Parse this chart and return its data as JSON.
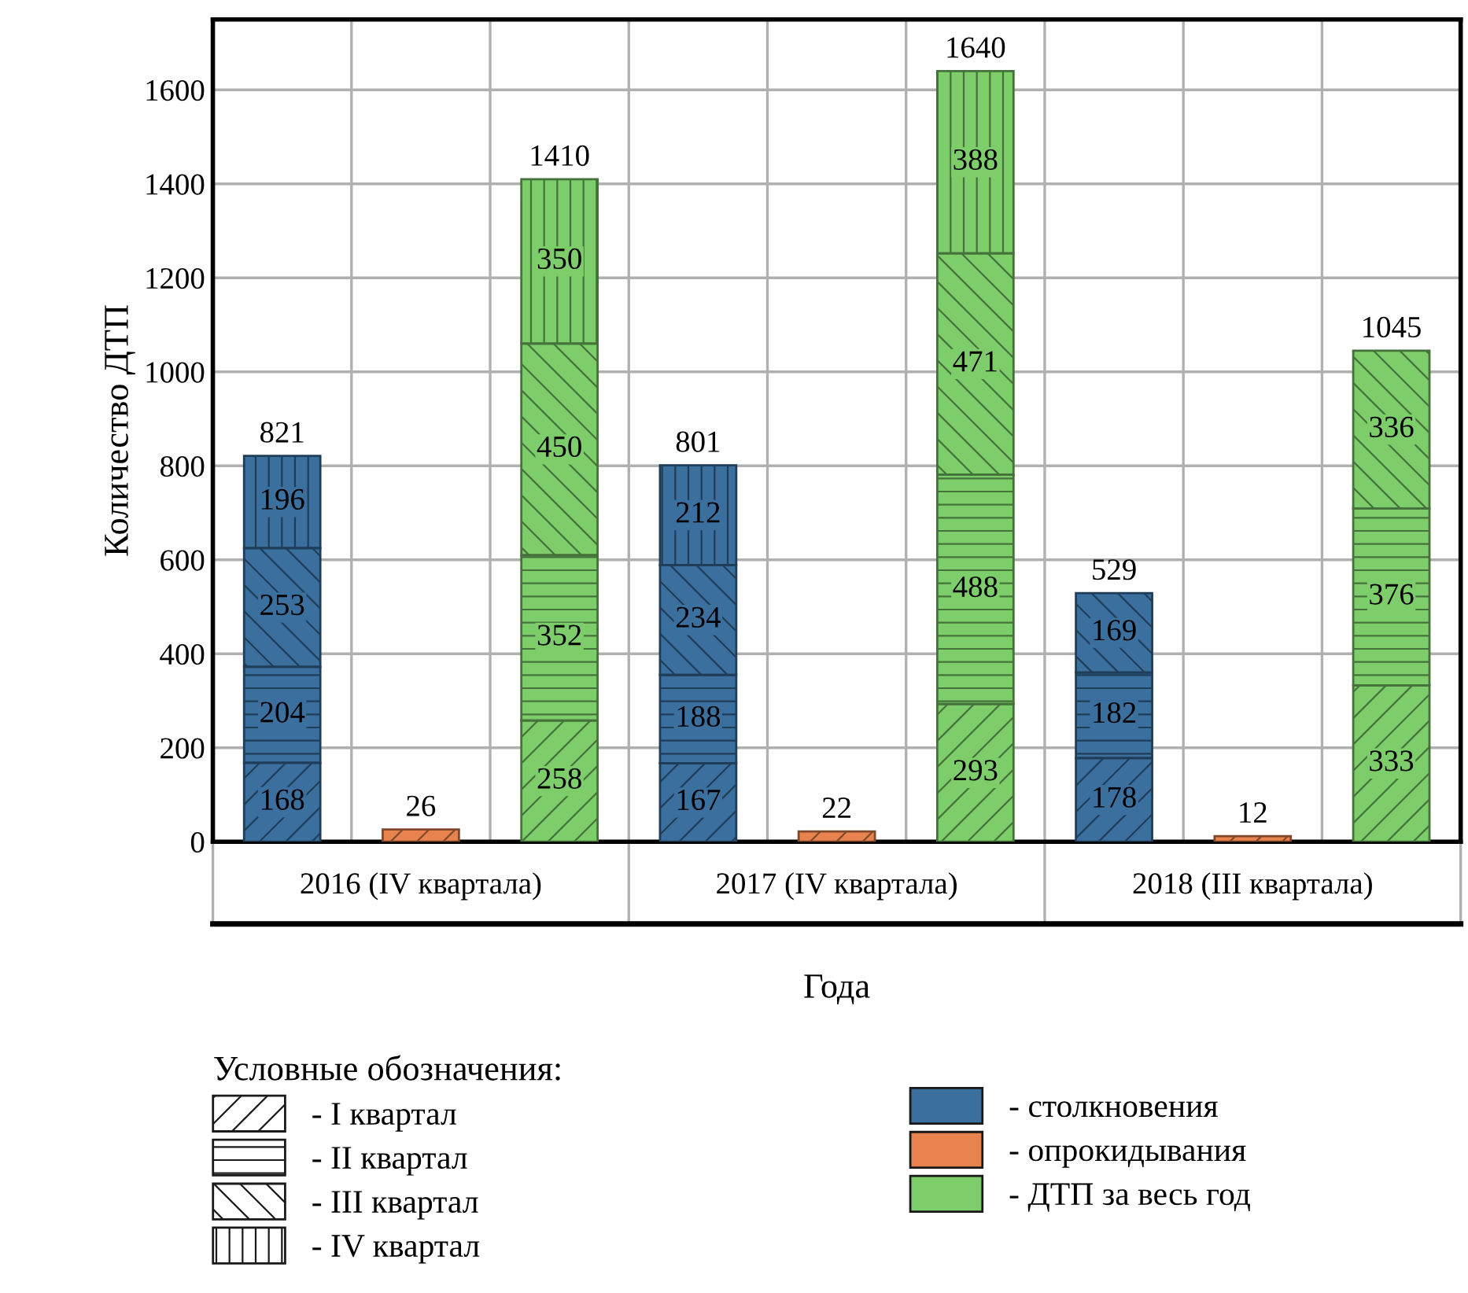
{
  "chart_data": {
    "type": "bar",
    "stacked": true,
    "xlabel": "Года",
    "ylabel": "Количество ДТП",
    "legend_title": "Условные обозначения:",
    "categories": [
      null,
      "2016 (IV квартала)",
      null,
      null,
      "2017 (IV квартала)",
      null,
      null,
      "2018 (III квартала)",
      null
    ],
    "series": [
      {
        "colors": [
          "#3a6f9e",
          "#e8834f",
          "#7dcd6b",
          "#3a6f9e",
          "#e8834f",
          "#7dcd6b",
          "#3a6f9e",
          "#e8834f",
          "#7dcd6b"
        ],
        "values": [
          168,
          26,
          258,
          167,
          22,
          293,
          178,
          12,
          333
        ],
        "value_labels": [
          "168",
          null,
          "258",
          "167",
          null,
          "293",
          "178",
          null,
          "333"
        ]
      },
      {
        "colors": [
          "#3a6f9e",
          "#e8834f",
          "#7dcd6b",
          "#3a6f9e",
          "#e8834f",
          "#7dcd6b",
          "#3a6f9e",
          "#e8834f",
          "#7dcd6b"
        ],
        "values": [
          204,
          null,
          352,
          188,
          null,
          488,
          182,
          null,
          376
        ],
        "value_labels": [
          "204",
          null,
          "352",
          "188",
          null,
          "488",
          "182",
          null,
          "376"
        ]
      },
      {
        "colors": [
          "#3a6f9e",
          "#e8834f",
          "#7dcd6b",
          "#3a6f9e",
          "#e8834f",
          "#7dcd6b",
          "#3a6f9e",
          "#e8834f",
          "#7dcd6b"
        ],
        "values": [
          253,
          null,
          450,
          234,
          null,
          471,
          169,
          null,
          336
        ],
        "value_labels": [
          "253",
          null,
          "450",
          "234",
          null,
          "471",
          "169",
          null,
          "336"
        ]
      },
      {
        "colors": [
          "#3a6f9e",
          "#e8834f",
          "#7dcd6b",
          "#3a6f9e",
          "#e8834f",
          "#7dcd6b",
          "#3a6f9e",
          "#e8834f",
          "#7dcd6b"
        ],
        "values": [
          196,
          null,
          350,
          212,
          null,
          388,
          null,
          null,
          null
        ],
        "value_labels": [
          "196",
          null,
          "350",
          "212",
          null,
          "388",
          null,
          null,
          null
        ]
      }
    ],
    "totals": [
      "821",
      "26",
      "1410",
      "801",
      "22",
      "1640",
      "529",
      "12",
      "1045"
    ],
    "annotations": [
      "- I квартал",
      "- II квартал",
      "- III квартал",
      "- IV квартал",
      "- столкновения",
      "- опрокидывания",
      "- ДТП за весь год"
    ],
    "ylim": [
      0,
      1750
    ],
    "yticks": [
      0,
      200,
      400,
      600,
      800,
      1000,
      1200,
      1400,
      1600
    ],
    "grid": true
  }
}
